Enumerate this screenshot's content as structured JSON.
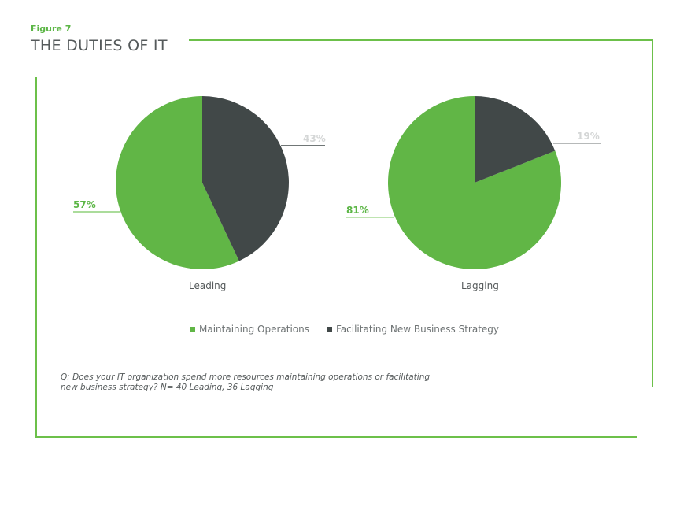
{
  "figure_label": "Figure 7",
  "title": "THE DUTIES OF IT",
  "colors": {
    "accent": "#6cc04a",
    "maintaining": "#61b646",
    "facilitating": "#414848",
    "label_light": "#d4d6d6",
    "text": "#555a5b"
  },
  "charts": [
    {
      "name": "Leading",
      "maintaining_label": "57%",
      "facilitating_label": "43%"
    },
    {
      "name": "Lagging",
      "maintaining_label": "81%",
      "facilitating_label": "19%"
    }
  ],
  "legend": {
    "items": [
      {
        "label": "Maintaining Operations"
      },
      {
        "label": "Facilitating New Business Strategy"
      }
    ]
  },
  "footnote": "Q: Does your IT organization spend more resources maintaining operations or facilitating new business strategy? N= 40 Leading, 36 Lagging",
  "chart_data": [
    {
      "type": "pie",
      "title": "Leading",
      "categories": [
        "Maintaining Operations",
        "Facilitating New Business Strategy"
      ],
      "values": [
        57,
        43
      ],
      "unit": "%",
      "legend_position": "bottom"
    },
    {
      "type": "pie",
      "title": "Lagging",
      "categories": [
        "Maintaining Operations",
        "Facilitating New Business Strategy"
      ],
      "values": [
        81,
        19
      ],
      "unit": "%",
      "legend_position": "bottom"
    }
  ]
}
